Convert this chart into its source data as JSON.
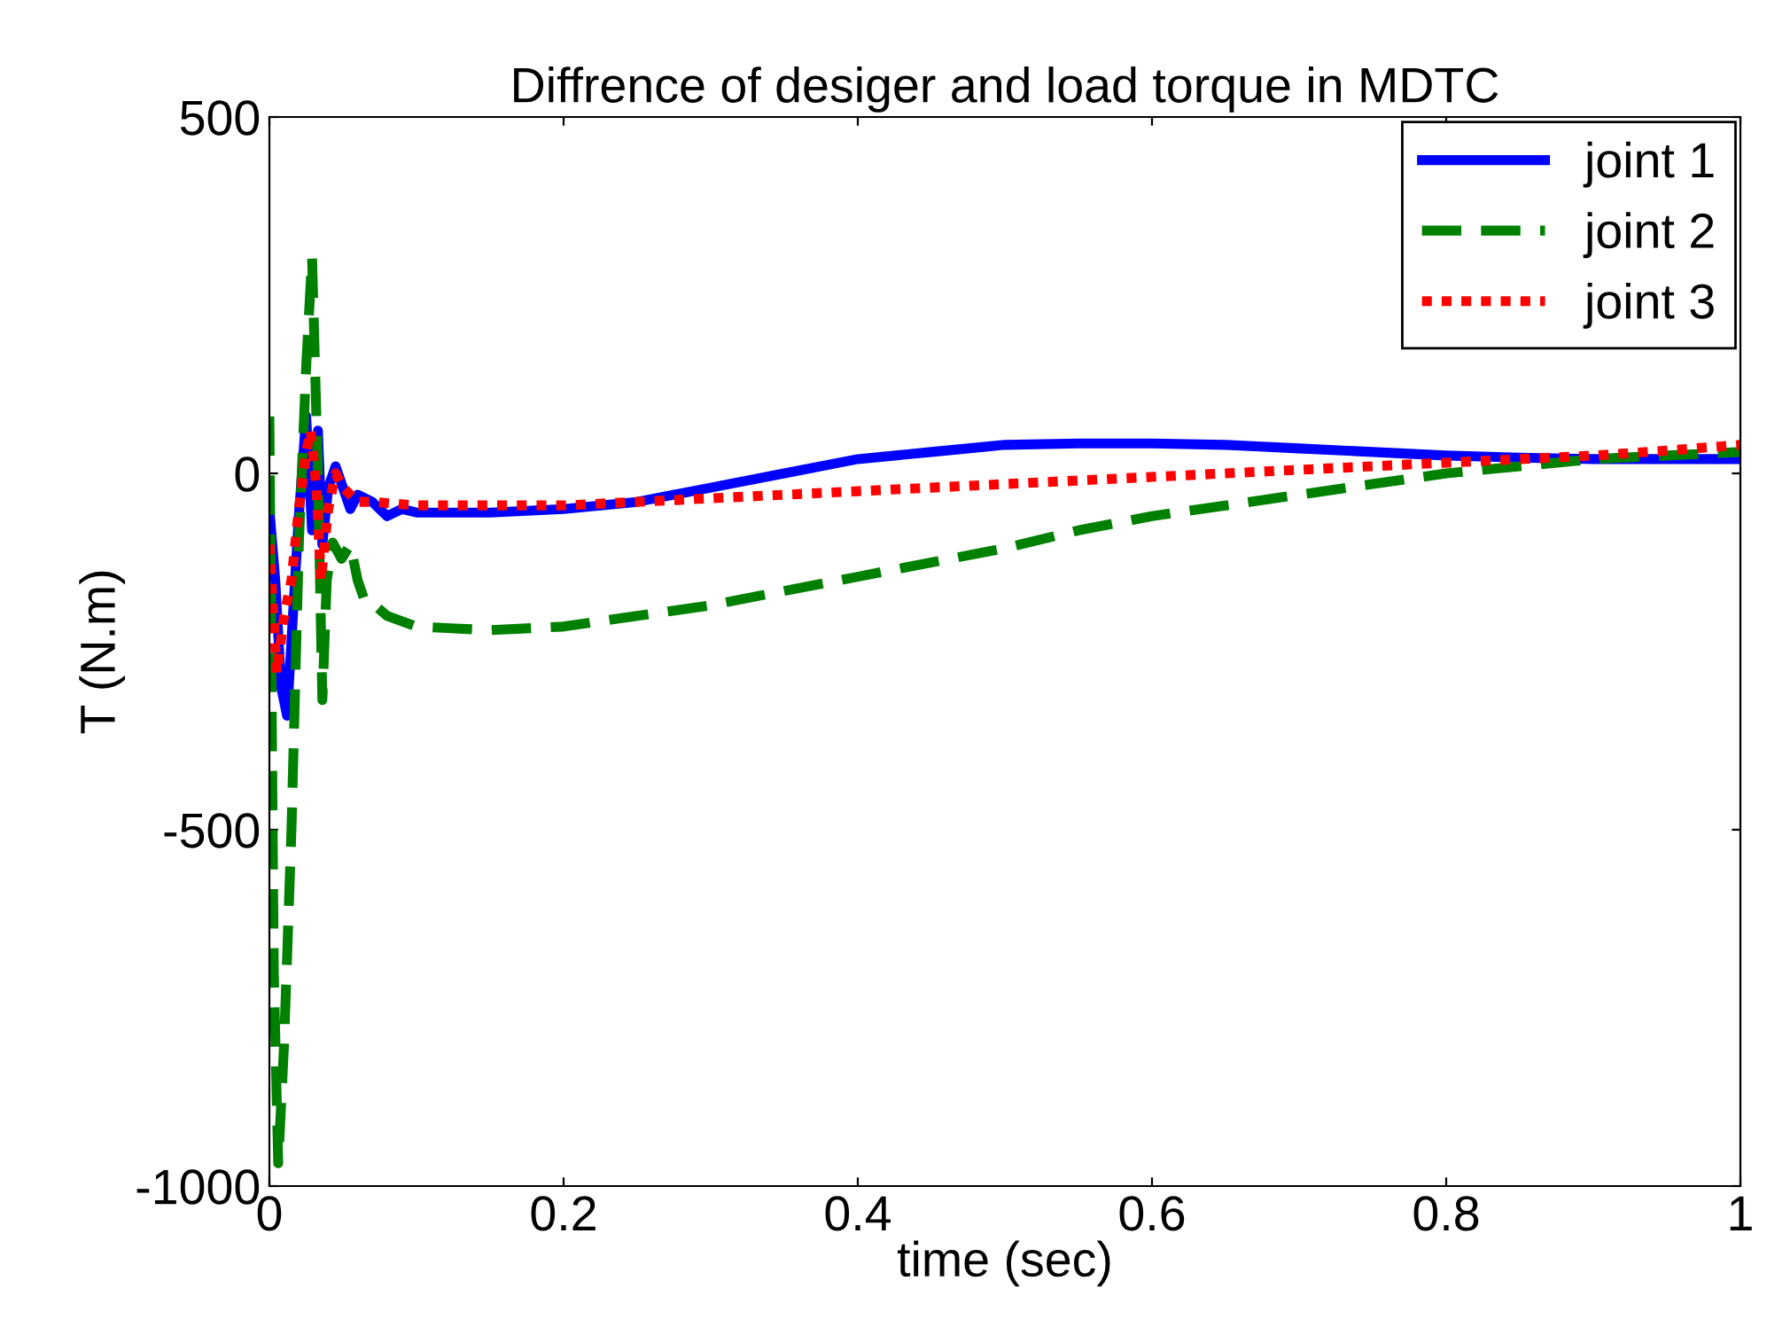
{
  "chart_data": {
    "type": "line",
    "title": "Diffrence of desiger and load torque in MDTC",
    "xlabel": "time (sec)",
    "ylabel": "T (N.m)",
    "xlim": [
      0,
      1
    ],
    "ylim": [
      -1000,
      500
    ],
    "xticks": [
      0,
      0.2,
      0.4,
      0.6,
      0.8,
      1
    ],
    "yticks": [
      -1000,
      -500,
      0,
      500
    ],
    "grid": false,
    "legend": "top right",
    "series": [
      {
        "name": "joint 1",
        "color": "#0000ff",
        "line_style": "solid",
        "x": [
          0,
          0.004,
          0.008,
          0.012,
          0.016,
          0.02,
          0.025,
          0.029,
          0.033,
          0.036,
          0.04,
          0.045,
          0.05,
          0.055,
          0.06,
          0.07,
          0.08,
          0.09,
          0.1,
          0.15,
          0.2,
          0.25,
          0.3,
          0.35,
          0.4,
          0.45,
          0.5,
          0.55,
          0.6,
          0.65,
          0.7,
          0.75,
          0.8,
          0.85,
          0.9,
          0.95,
          1
        ],
        "values": [
          -50,
          -150,
          -300,
          -340,
          -200,
          -60,
          80,
          -80,
          60,
          -100,
          -20,
          10,
          -20,
          -50,
          -30,
          -40,
          -60,
          -50,
          -55,
          -55,
          -50,
          -40,
          -20,
          0,
          20,
          30,
          40,
          42,
          42,
          40,
          35,
          30,
          25,
          22,
          20,
          20,
          20
        ]
      },
      {
        "name": "joint 2",
        "color": "#008000",
        "line_style": "dashed",
        "x": [
          0,
          0.003,
          0.006,
          0.01,
          0.015,
          0.02,
          0.025,
          0.029,
          0.033,
          0.036,
          0.039,
          0.043,
          0.049,
          0.055,
          0.06,
          0.065,
          0.071,
          0.08,
          0.1,
          0.15,
          0.2,
          0.25,
          0.3,
          0.35,
          0.4,
          0.45,
          0.5,
          0.55,
          0.6,
          0.65,
          0.7,
          0.75,
          0.8,
          0.85,
          0.9,
          0.95,
          1
        ],
        "values": [
          80,
          -700,
          -968,
          -800,
          -500,
          -100,
          150,
          303,
          0,
          -318,
          -150,
          -97,
          -120,
          -100,
          -150,
          -180,
          -184,
          -200,
          -215,
          -220,
          -215,
          -200,
          -185,
          -165,
          -145,
          -125,
          -105,
          -80,
          -60,
          -45,
          -30,
          -15,
          0,
          10,
          20,
          25,
          30
        ]
      },
      {
        "name": "joint 3",
        "color": "#ff0000",
        "line_style": "dotted",
        "x": [
          0,
          0.005,
          0.01,
          0.015,
          0.02,
          0.025,
          0.028,
          0.032,
          0.035,
          0.04,
          0.045,
          0.05,
          0.06,
          0.07,
          0.1,
          0.15,
          0.2,
          0.25,
          0.3,
          0.35,
          0.4,
          0.45,
          0.5,
          0.55,
          0.6,
          0.65,
          0.7,
          0.75,
          0.8,
          0.85,
          0.9,
          0.95,
          1
        ],
        "values": [
          -100,
          -280,
          -200,
          -150,
          -50,
          30,
          60,
          -20,
          -150,
          -50,
          0,
          -20,
          -40,
          -40,
          -45,
          -45,
          -45,
          -40,
          -35,
          -30,
          -25,
          -20,
          -15,
          -10,
          -5,
          0,
          5,
          10,
          15,
          20,
          25,
          32,
          40
        ]
      }
    ]
  }
}
